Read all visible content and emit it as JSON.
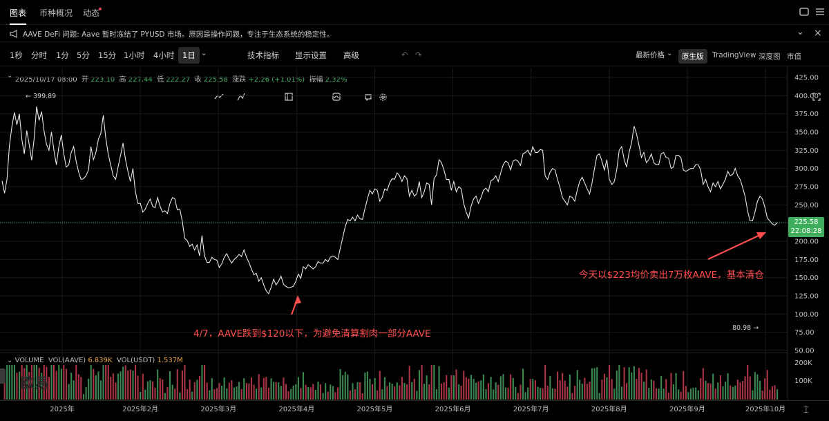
{
  "tabs": [
    {
      "label": "图表",
      "active": true
    },
    {
      "label": "币种概况",
      "active": false
    },
    {
      "label": "动态",
      "active": false,
      "dot": true
    }
  ],
  "notice": {
    "text": "AAVE DeFi 问题: Aave 暂时冻结了 PYUSD 市场。原因是操作问题，专注于生态系统的稳定性。"
  },
  "toolbar": {
    "intervals": [
      "1秒",
      "分时",
      "1分",
      "5分",
      "15分",
      "1小时",
      "4小时"
    ],
    "selected_interval": "1日",
    "indicators_label": "技术指标",
    "display_label": "显示设置",
    "advanced_label": "高级",
    "price_type_label": "最新价格",
    "views": [
      "原生版",
      "TradingView",
      "深度图",
      "市值"
    ],
    "selected_view": "原生版"
  },
  "ohlc": {
    "date": "2025/10/17 08:00",
    "open_label": "开",
    "open": "223.10",
    "high_label": "高",
    "high": "227.44",
    "low_label": "低",
    "low": "222.27",
    "close_label": "收",
    "close": "225.58",
    "change_label": "涨跌",
    "change": "+2.26 (+1.01%)",
    "amplitude_label": "振幅",
    "amplitude": "2.32%"
  },
  "price_badge": {
    "price": "225.58",
    "countdown": "22:08:28",
    "color": "#3fae5c"
  },
  "marks": {
    "high": "399.89",
    "low": "80.98"
  },
  "annotations": {
    "april": "4/7，AAVE跌到$120以下，为避免清算割肉一部分AAVE",
    "today": "今天以$223均价卖出7万枚AAVE，基本清仓",
    "color": "#ff4d4d"
  },
  "volume_bar": {
    "title": "VOLUME",
    "vol_aave_label": "VOL(AAVE)",
    "vol_aave": "6.839K",
    "vol_usdt_label": "VOL(USDT)",
    "vol_usdt": "1.537M",
    "axis": [
      "200K",
      "100K"
    ]
  },
  "watermark": "欧易",
  "chart_data": {
    "type": "line",
    "y_ticks": [
      "425.00",
      "400.00",
      "375.00",
      "350.00",
      "325.00",
      "300.00",
      "275.00",
      "250.00",
      "225.00",
      "200.00",
      "175.00",
      "150.00",
      "125.00",
      "100.00",
      "75.00",
      "50.00"
    ],
    "x_labels": [
      "2025年",
      "2025年2月",
      "2025年3月",
      "2025年4月",
      "2025年5月",
      "2025年6月",
      "2025年7月",
      "2025年8月",
      "2025年9月",
      "2025年10月"
    ],
    "ylim": [
      50,
      425
    ],
    "series": [
      {
        "values": [
          283,
          266,
          285,
          332,
          358,
          377,
          360,
          375,
          340,
          320,
          352,
          333,
          311,
          342,
          385,
          366,
          378,
          352,
          333,
          325,
          350,
          325,
          305,
          330,
          346,
          320,
          302,
          305,
          322,
          330,
          310,
          295,
          285,
          286,
          290,
          298,
          330,
          312,
          322,
          340,
          348,
          373,
          342,
          320,
          305,
          290,
          285,
          302,
          318,
          335,
          312,
          296,
          282,
          300,
          268,
          252,
          252,
          240,
          244,
          252,
          258,
          248,
          246,
          260,
          248,
          240,
          242,
          238,
          252,
          260,
          258,
          243,
          244,
          228,
          204,
          201,
          193,
          196,
          188,
          195,
          180,
          208,
          180,
          171,
          171,
          178,
          175,
          174,
          164,
          169,
          178,
          183,
          176,
          170,
          175,
          178,
          182,
          179,
          188,
          178,
          171,
          162,
          154,
          156,
          145,
          150,
          140,
          132,
          128,
          137,
          148,
          140,
          145,
          152,
          141,
          138,
          136,
          137,
          138,
          145,
          155,
          149,
          165,
          162,
          168,
          165,
          162,
          165,
          172,
          170,
          170,
          175,
          172,
          178,
          180,
          178,
          175,
          190,
          205,
          220,
          230,
          228,
          233,
          228,
          236,
          231,
          230,
          245,
          258,
          270,
          265,
          272,
          270,
          255,
          260,
          272,
          270,
          280,
          286,
          285,
          294,
          290,
          282,
          290,
          286,
          262,
          270,
          262,
          265,
          282,
          260,
          268,
          280,
          278,
          250,
          286,
          291,
          312,
          308,
          298,
          285,
          285,
          270,
          282,
          268,
          275,
          272,
          252,
          240,
          232,
          248,
          258,
          262,
          252,
          260,
          270,
          273,
          268,
          283,
          285,
          290,
          282,
          294,
          305,
          310,
          308,
          298,
          310,
          312,
          310,
          304,
          320,
          322,
          325,
          318,
          330,
          322,
          322,
          326,
          325,
          290,
          285,
          295,
          300,
          298,
          285,
          274,
          260,
          255,
          250,
          262,
          260,
          255,
          270,
          282,
          288,
          280,
          272,
          265,
          280,
          300,
          318,
          320,
          310,
          298,
          312,
          285,
          278,
          282,
          298,
          325,
          330,
          312,
          302,
          322,
          335,
          358,
          348,
          332,
          315,
          322,
          308,
          312,
          320,
          308,
          305,
          305,
          320,
          322,
          315,
          314,
          300,
          302,
          318,
          318,
          315,
          298,
          296,
          298,
          300,
          300,
          305,
          305,
          298,
          278,
          285,
          275,
          268,
          280,
          275,
          282,
          272,
          278,
          285,
          296,
          290,
          292,
          300,
          290,
          285,
          274,
          262,
          242,
          228,
          228,
          240,
          255,
          262,
          258,
          247,
          232,
          228,
          224,
          222,
          225.58
        ]
      }
    ]
  },
  "colors": {
    "up": "#4db46b",
    "down": "#e0455b",
    "line": "#e8e8e8",
    "grid": "#1a1a1a"
  }
}
